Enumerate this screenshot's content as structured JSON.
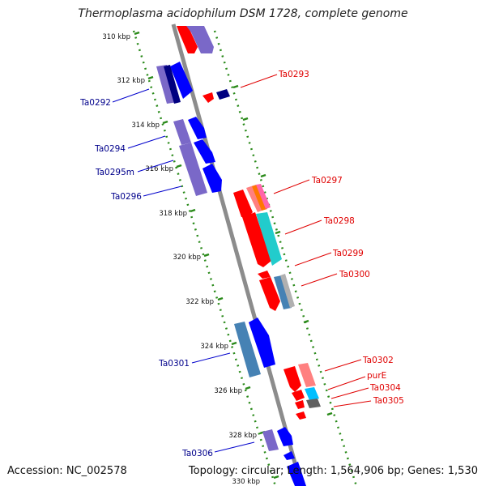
{
  "title": "Thermoplasma acidophilum DSM 1728, complete genome",
  "accession": "Accession: NC_002578",
  "topology": "Topology: circular; Length: 1,564,906 bp; Genes: 1,530",
  "ruler": [
    {
      "label": "310 kbp"
    },
    {
      "label": "312 kbp"
    },
    {
      "label": "314 kbp"
    },
    {
      "label": "316 kbp"
    },
    {
      "label": "318 kbp"
    },
    {
      "label": "320 kbp"
    },
    {
      "label": "322 kbp"
    },
    {
      "label": "324 kbp"
    },
    {
      "label": "326 kbp"
    },
    {
      "label": "328 kbp"
    },
    {
      "label": "330 kbp"
    }
  ],
  "gene_labels_left": [
    "Ta0292",
    "Ta0294",
    "Ta0295m",
    "Ta0296",
    "Ta0301",
    "Ta0306"
  ],
  "gene_labels_right": [
    "Ta0293",
    "Ta0297",
    "Ta0298",
    "Ta0299",
    "Ta0300",
    "Ta0302",
    "purE",
    "Ta0304",
    "Ta0305"
  ],
  "colors": {
    "backbone": "#8c8c8c",
    "tick": "#2a8a1a",
    "forward_gene": "#0000ff",
    "forward_gene_alt": "#7a68c8",
    "forward_gene_dark": "#000080",
    "reverse_gene": "#ff0000",
    "left_label": "#00008b",
    "right_label": "#e00000",
    "cyan_block": "#22cccc",
    "steel_block": "#4682b4"
  }
}
